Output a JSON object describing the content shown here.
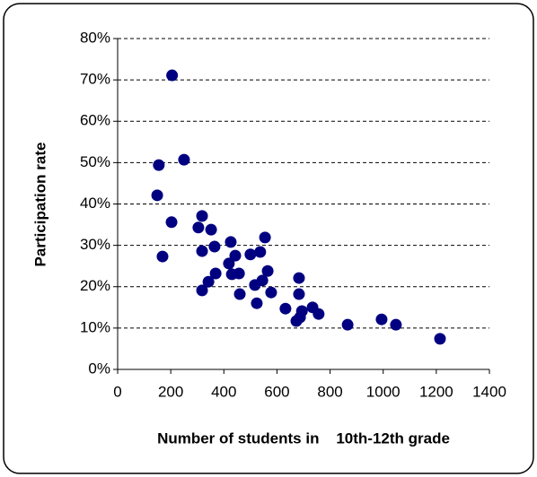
{
  "chart_data": {
    "type": "scatter",
    "y_label": "Participation rate",
    "x_label": "Number of students in    10th-12th grade",
    "color": "#000080",
    "grid": true,
    "xlim": [
      0,
      1400
    ],
    "xticks": [
      0,
      200,
      400,
      600,
      800,
      1000,
      1200,
      1400
    ],
    "ylim": [
      0,
      80
    ],
    "yticks": [
      {
        "value": 0,
        "label": "0%"
      },
      {
        "value": 10,
        "label": "10%"
      },
      {
        "value": 20,
        "label": "20%"
      },
      {
        "value": 30,
        "label": "30%"
      },
      {
        "value": 40,
        "label": "40%"
      },
      {
        "value": 50,
        "label": "50%"
      },
      {
        "value": 60,
        "label": "60%"
      },
      {
        "value": 70,
        "label": "70%"
      },
      {
        "value": 80,
        "label": "80%"
      }
    ],
    "x": [
      205,
      155,
      250,
      149,
      203,
      169,
      318,
      304,
      352,
      318,
      365,
      318,
      342,
      369,
      426,
      419,
      443,
      457,
      430,
      460,
      500,
      537,
      555,
      565,
      517,
      545,
      524,
      578,
      632,
      673,
      687,
      694,
      683,
      683,
      734,
      757,
      866,
      994,
      1048,
      1214
    ],
    "values": [
      71.1,
      49.4,
      50.7,
      42.1,
      35.6,
      27.3,
      37.1,
      34.3,
      33.8,
      28.6,
      29.7,
      19.1,
      21.2,
      23.2,
      30.8,
      25.6,
      27.5,
      23.2,
      23.0,
      18.2,
      27.8,
      28.4,
      31.9,
      23.8,
      20.4,
      21.5,
      16.0,
      18.6,
      14.7,
      11.7,
      12.6,
      14.1,
      22.1,
      18.2,
      15.0,
      13.4,
      10.8,
      12.1,
      10.8,
      7.4
    ]
  }
}
